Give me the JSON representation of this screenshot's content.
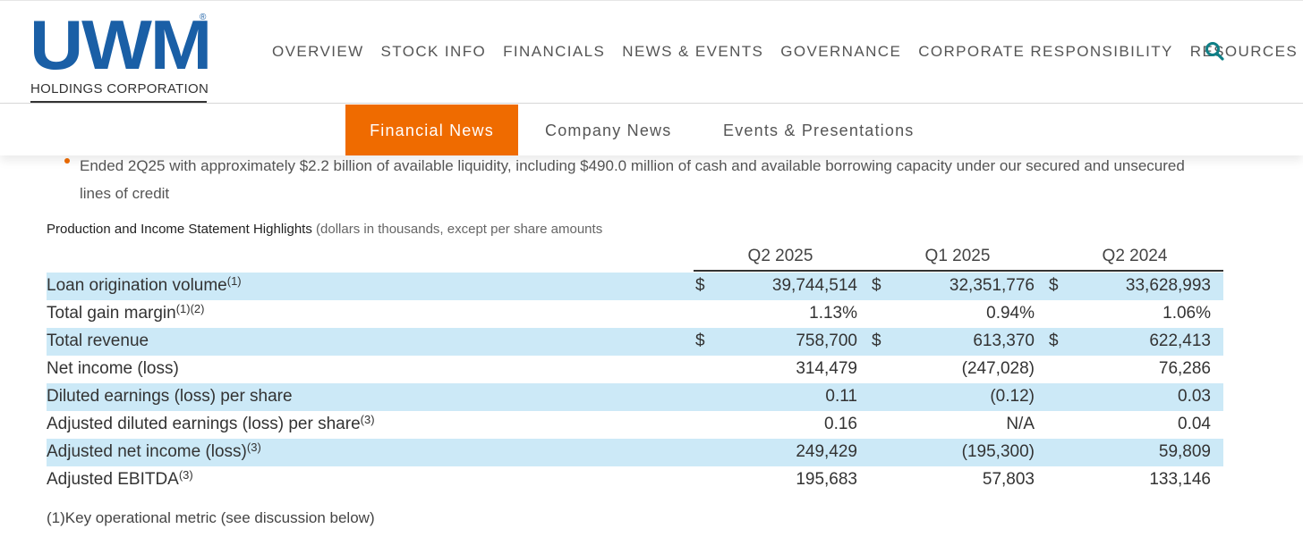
{
  "brand": {
    "logo_text": "UWM",
    "registered": "®",
    "subtitle": "HOLDINGS CORPORATION",
    "color": "#1a5fa6"
  },
  "nav": {
    "items": [
      "OVERVIEW",
      "STOCK INFO",
      "FINANCIALS",
      "NEWS & EVENTS",
      "GOVERNANCE",
      "CORPORATE RESPONSIBILITY",
      "RESOURCES"
    ],
    "search_icon": "search-icon"
  },
  "subnav": {
    "tabs": [
      "Financial News",
      "Company News",
      "Events & Presentations"
    ],
    "active": "Financial News",
    "accent": "#ef6b00"
  },
  "bullet": {
    "text": "Ended 2Q25 with approximately $2.2 billion of available liquidity, including $490.0 million of cash and available borrowing capacity under our secured and unsecured lines of credit"
  },
  "table": {
    "caption_bold": "Production and Income Statement Highlights",
    "caption_rest": " (dollars in thousands, except per share amounts",
    "columns": [
      "Q2 2025",
      "Q1 2025",
      "Q2 2024"
    ],
    "rows": [
      {
        "label": "Loan origination volume",
        "sup": "(1)",
        "currency": true,
        "values": [
          "39,744,514",
          "32,351,776",
          "33,628,993"
        ]
      },
      {
        "label": "Total gain margin",
        "sup": "(1)(2)",
        "currency": false,
        "values": [
          "1.13%",
          "0.94%",
          "1.06%"
        ]
      },
      {
        "label": "Total revenue",
        "sup": "",
        "currency": true,
        "values": [
          "758,700",
          "613,370",
          "622,413"
        ]
      },
      {
        "label": "Net income (loss)",
        "sup": "",
        "currency": false,
        "values": [
          "314,479",
          "(247,028)",
          "76,286"
        ]
      },
      {
        "label": "Diluted earnings (loss) per share",
        "sup": "",
        "currency": false,
        "values": [
          "0.11",
          "(0.12)",
          "0.03"
        ]
      },
      {
        "label": "Adjusted diluted earnings (loss) per share",
        "sup": "(3)",
        "currency": false,
        "values": [
          "0.16",
          "N/A",
          "0.04"
        ]
      },
      {
        "label": "Adjusted net income (loss)",
        "sup": "(3)",
        "currency": false,
        "values": [
          "249,429",
          "(195,300)",
          "59,809"
        ]
      },
      {
        "label": "Adjusted EBITDA",
        "sup": "(3)",
        "currency": false,
        "values": [
          "195,683",
          "57,803",
          "133,146"
        ]
      }
    ],
    "currency_symbol": "$",
    "shade_color": "#cce9f7"
  },
  "footnote": "(1)Key operational metric (see discussion below)"
}
